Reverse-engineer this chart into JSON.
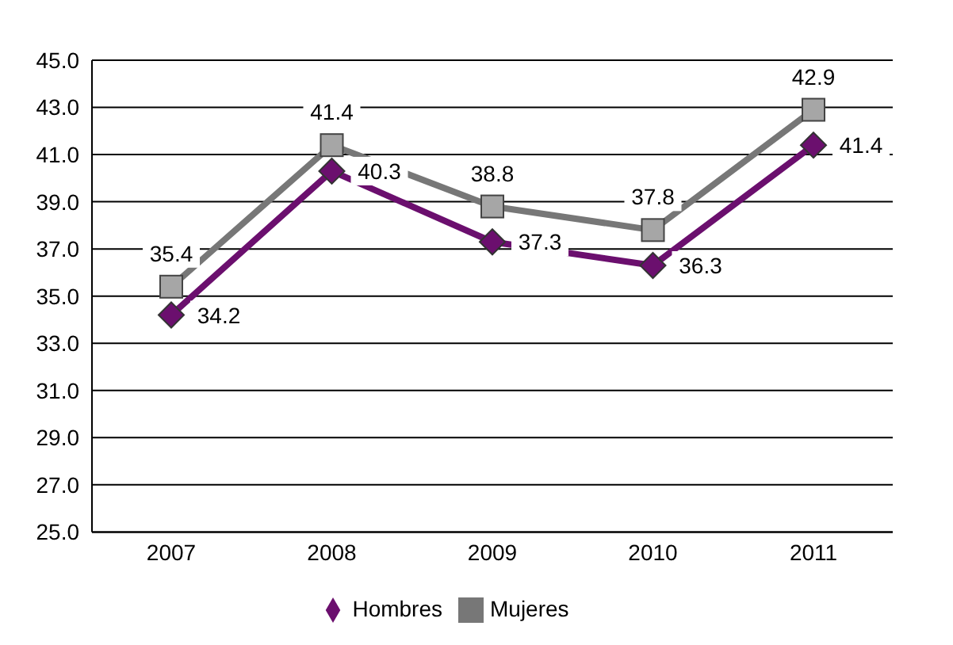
{
  "chart_data": {
    "type": "line",
    "categories": [
      "2007",
      "2008",
      "2009",
      "2010",
      "2011"
    ],
    "series": [
      {
        "name": "Hombres",
        "color": "#6b0f6e",
        "marker": "diamond",
        "values": [
          34.2,
          40.3,
          37.3,
          36.3,
          41.4
        ]
      },
      {
        "name": "Mujeres",
        "color": "#777777",
        "marker": "square",
        "values": [
          35.4,
          41.4,
          38.8,
          37.8,
          42.9
        ]
      }
    ],
    "ylim": [
      25,
      45
    ],
    "yticks": [
      {
        "value": 25,
        "label": "25.0"
      },
      {
        "value": 27,
        "label": "27.0"
      },
      {
        "value": 29,
        "label": "29.0"
      },
      {
        "value": 31,
        "label": "31.0"
      },
      {
        "value": 33,
        "label": "33.0"
      },
      {
        "value": 35,
        "label": "35.0"
      },
      {
        "value": 37,
        "label": "37.0"
      },
      {
        "value": 39,
        "label": "39.0"
      },
      {
        "value": 41,
        "label": "41.0"
      },
      {
        "value": 43,
        "label": "43.0"
      },
      {
        "value": 45,
        "label": "45.0"
      }
    ],
    "grid": "y",
    "legend": "bottom",
    "data_labels": true
  }
}
